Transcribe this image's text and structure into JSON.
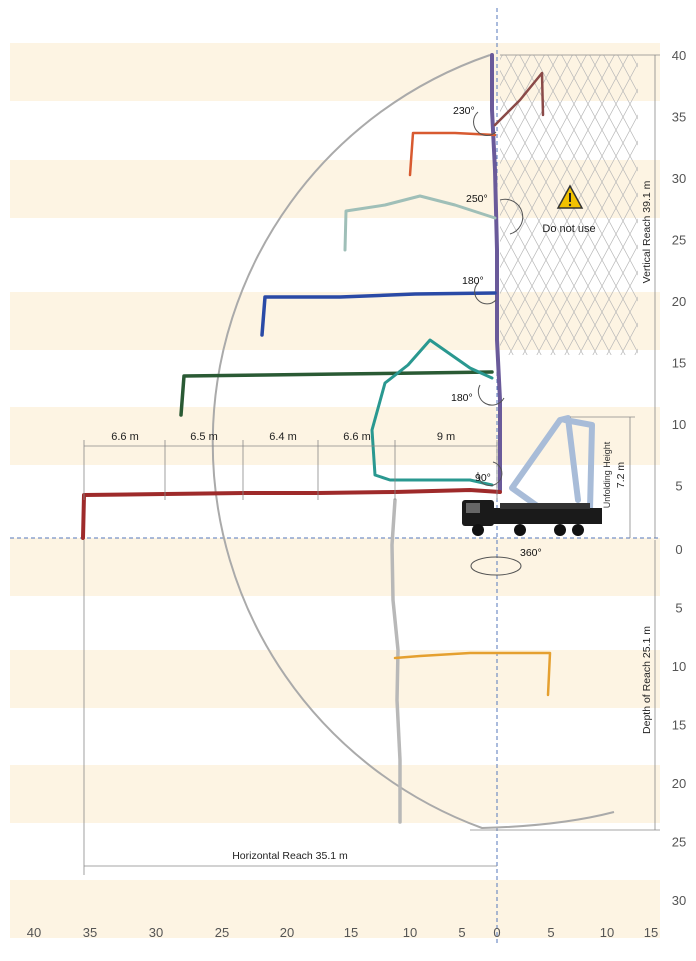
{
  "y_axis_right_upper": [
    "40",
    "35",
    "30",
    "25",
    "20",
    "15",
    "10",
    "5"
  ],
  "y_axis_right_lower": [
    "0",
    "5",
    "10",
    "15",
    "20",
    "25",
    "30"
  ],
  "x_axis_bottom": [
    "40",
    "35",
    "30",
    "25",
    "20",
    "15",
    "10",
    "5",
    "0",
    "5",
    "10",
    "15"
  ],
  "segments": [
    "6.6 m",
    "6.5 m",
    "6.4 m",
    "6.6 m",
    "9 m"
  ],
  "angles": {
    "a230": "230°",
    "a250": "250°",
    "a180_top": "180°",
    "a180_mid": "180°",
    "a90": "90°",
    "a360": "360°"
  },
  "warning_text": "Do not use",
  "vertical_reach": "Vertical Reach  39.1 m",
  "depth_of_reach": "Depth of Reach  25.1 m",
  "horizontal_reach": "Horizontal Reach  35.1 m",
  "unfolding_height": {
    "label": "Unfolding Height",
    "value": "7.2  m"
  },
  "colors": {
    "band": "#fdf4e3",
    "arc": "#aaaaaa",
    "axis_dash": "#5577bb",
    "boom_red": "#9e2a2a",
    "boom_green": "#2a5a34",
    "boom_teal": "#2a9890",
    "boom_blue": "#2a4aa6",
    "boom_mint": "#9fbfb8",
    "boom_orange_top": "#d85a30",
    "boom_brown": "#8a4a48",
    "boom_purple": "#6a5a9a",
    "boom_orange_low": "#e5a030",
    "boom_gray": "#b8b8b8",
    "boom_folded": "#a8bcd8",
    "warning": "#f2c200"
  }
}
